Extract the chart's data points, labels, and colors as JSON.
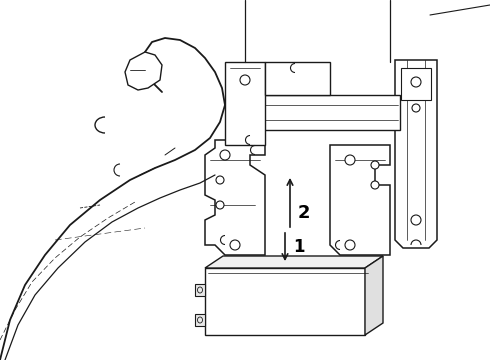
{
  "background_color": "#ffffff",
  "line_color": "#1a1a1a",
  "label_color": "#000000",
  "label_1": "1",
  "label_2": "2",
  "figsize": [
    4.9,
    3.6
  ],
  "dpi": 100
}
